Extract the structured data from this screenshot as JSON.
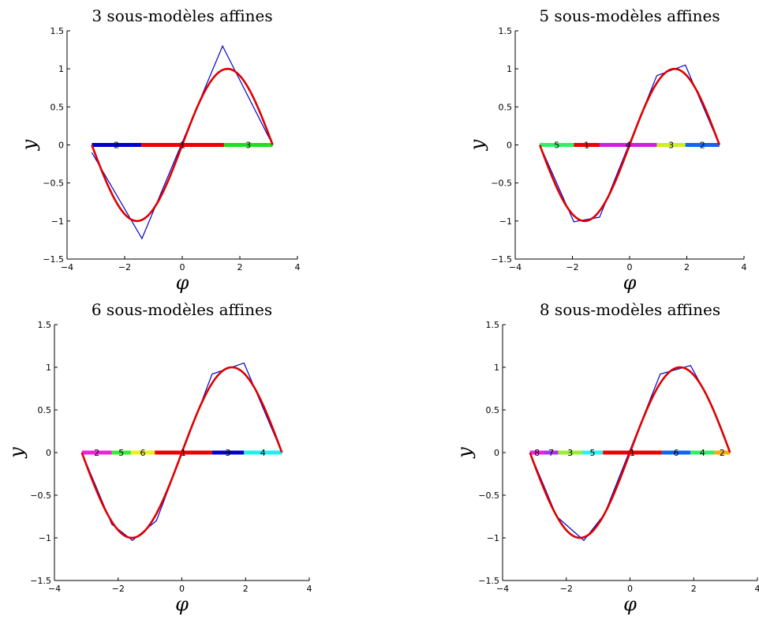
{
  "chart_data": [
    {
      "type": "line",
      "title": "3 sous-modèles affines",
      "xlabel": "φ",
      "ylabel": "y",
      "xlim": [
        -4,
        4
      ],
      "ylim": [
        -1.5,
        1.5
      ],
      "xticks": [
        "−4",
        "−2",
        "0",
        "2",
        "4"
      ],
      "yticks": [
        "−1.5",
        "−1",
        "−0.5",
        "0",
        "0.5",
        "1",
        "1.5"
      ],
      "grid": false,
      "series": [
        {
          "color": "#0000cc",
          "x": [
            -3.14,
            -1.4,
            1.4,
            3.14
          ],
          "y": [
            -0.1,
            -1.23,
            1.3,
            0.0
          ]
        },
        {
          "color": "#dd0000",
          "function": "sin",
          "x_range": [
            -3.14,
            3.14
          ]
        }
      ],
      "segments": [
        {
          "label": "2",
          "x_start": -3.14,
          "x_end": -1.42,
          "color": "#0000cc"
        },
        {
          "label": "1",
          "x_start": -1.42,
          "x_end": 1.45,
          "color": "#ee0000"
        },
        {
          "label": "3",
          "x_start": 1.45,
          "x_end": 3.14,
          "color": "#22dd22"
        }
      ]
    },
    {
      "type": "line",
      "title": "5 sous-modèles affines",
      "xlabel": "φ",
      "ylabel": "y",
      "xlim": [
        -4,
        4
      ],
      "ylim": [
        -1.5,
        1.5
      ],
      "xticks": [
        "−4",
        "−2",
        "0",
        "2",
        "4"
      ],
      "yticks": [
        "−1.5",
        "−1",
        "−0.5",
        "0",
        "0.5",
        "1",
        "1.5"
      ],
      "grid": false,
      "series": [
        {
          "color": "#0000cc",
          "x": [
            -3.14,
            -1.95,
            -1.05,
            0.95,
            1.95,
            3.14
          ],
          "y": [
            0.0,
            -1.01,
            -0.95,
            0.91,
            1.05,
            0.0
          ]
        },
        {
          "color": "#dd0000",
          "function": "sin",
          "x_range": [
            -3.14,
            3.14
          ]
        }
      ],
      "segments": [
        {
          "label": "5",
          "x_start": -3.14,
          "x_end": -1.95,
          "color": "#33ee66"
        },
        {
          "label": "1",
          "x_start": -1.95,
          "x_end": -1.05,
          "color": "#ee0000"
        },
        {
          "label": "4",
          "x_start": -1.05,
          "x_end": 0.95,
          "color": "#cc22dd"
        },
        {
          "label": "3",
          "x_start": 0.95,
          "x_end": 1.95,
          "color": "#ccee22"
        },
        {
          "label": "2",
          "x_start": 1.95,
          "x_end": 3.14,
          "color": "#1166ee"
        }
      ]
    },
    {
      "type": "line",
      "title": "6 sous-modèles affines",
      "xlabel": "φ",
      "ylabel": "y",
      "xlim": [
        -4,
        4
      ],
      "ylim": [
        -1.5,
        1.5
      ],
      "xticks": [
        "−4",
        "−2",
        "0",
        "2",
        "4"
      ],
      "yticks": [
        "−1.5",
        "−1",
        "−0.5",
        "0",
        "0.5",
        "1",
        "1.5"
      ],
      "grid": false,
      "series": [
        {
          "color": "#0000cc",
          "x": [
            -3.14,
            -2.2,
            -1.55,
            -0.8,
            0.95,
            1.95,
            3.14
          ],
          "y": [
            0.0,
            -0.84,
            -1.03,
            -0.8,
            0.92,
            1.05,
            0.0
          ]
        },
        {
          "color": "#dd0000",
          "function": "sin",
          "x_range": [
            -3.14,
            3.14
          ]
        }
      ],
      "segments": [
        {
          "label": "2",
          "x_start": -3.14,
          "x_end": -2.2,
          "color": "#ee22dd"
        },
        {
          "label": "5",
          "x_start": -2.2,
          "x_end": -1.6,
          "color": "#33ee33"
        },
        {
          "label": "6",
          "x_start": -1.6,
          "x_end": -0.85,
          "color": "#eeee22"
        },
        {
          "label": "1",
          "x_start": -0.85,
          "x_end": 0.95,
          "color": "#ee0000"
        },
        {
          "label": "3",
          "x_start": 0.95,
          "x_end": 1.95,
          "color": "#0000cc"
        },
        {
          "label": "4",
          "x_start": 1.95,
          "x_end": 3.14,
          "color": "#22eeee"
        }
      ]
    },
    {
      "type": "line",
      "title": "8 sous-modèles affines",
      "xlabel": "φ",
      "ylabel": "y",
      "xlim": [
        -4,
        4
      ],
      "ylim": [
        -1.5,
        1.5
      ],
      "xticks": [
        "−4",
        "−2",
        "0",
        "2",
        "4"
      ],
      "yticks": [
        "−1.5",
        "−1",
        "−0.5",
        "0",
        "0.5",
        "1",
        "1.5"
      ],
      "grid": false,
      "series": [
        {
          "color": "#0000cc",
          "x": [
            -3.14,
            -2.3,
            -1.45,
            -0.8,
            0.95,
            1.9,
            2.45,
            3.14
          ],
          "y": [
            0.0,
            -0.75,
            -1.03,
            -0.72,
            0.92,
            1.02,
            0.65,
            0.0
          ]
        },
        {
          "color": "#dd0000",
          "function": "sin",
          "x_range": [
            -3.14,
            3.14
          ]
        }
      ],
      "segments": [
        {
          "label": "8",
          "x_start": -3.14,
          "x_end": -2.7,
          "color": "#ee22dd"
        },
        {
          "label": "7",
          "x_start": -2.7,
          "x_end": -2.25,
          "color": "#aa33ee"
        },
        {
          "label": "3",
          "x_start": -2.25,
          "x_end": -1.5,
          "color": "#99ee33"
        },
        {
          "label": "5",
          "x_start": -1.5,
          "x_end": -0.85,
          "color": "#33eeee"
        },
        {
          "label": "1",
          "x_start": -0.85,
          "x_end": 1.0,
          "color": "#ee0000"
        },
        {
          "label": "6",
          "x_start": 1.0,
          "x_end": 1.9,
          "color": "#1166ee"
        },
        {
          "label": "4",
          "x_start": 1.9,
          "x_end": 2.65,
          "color": "#33ee66"
        },
        {
          "label": "2",
          "x_start": 2.65,
          "x_end": 3.14,
          "color": "#ffaa11"
        }
      ]
    }
  ]
}
